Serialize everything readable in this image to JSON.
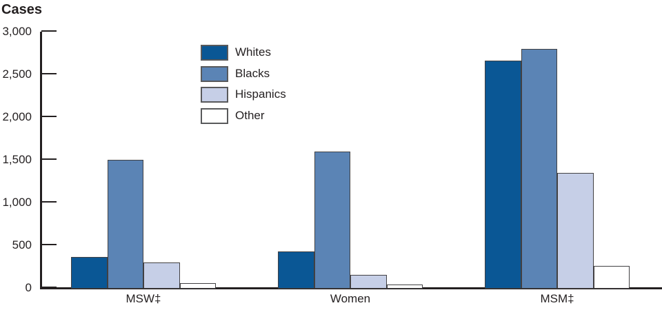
{
  "chart_data": {
    "type": "bar",
    "title": "",
    "ylabel": "Cases",
    "xlabel": "",
    "ylim": [
      0,
      3000
    ],
    "yticks": [
      0,
      500,
      1000,
      1500,
      2000,
      2500,
      3000
    ],
    "ytick_labels": [
      "0",
      "500",
      "1,000",
      "1,500",
      "2,000",
      "2,500",
      "3,000"
    ],
    "categories": [
      "MSW‡",
      "Women",
      "MSM‡"
    ],
    "series": [
      {
        "name": "Whites",
        "color": "#0a5795",
        "values": [
          360,
          425,
          2660
        ]
      },
      {
        "name": "Blacks",
        "color": "#5b84b5",
        "values": [
          1500,
          1600,
          2800
        ]
      },
      {
        "name": "Hispanics",
        "color": "#c6cfe7",
        "values": [
          300,
          150,
          1350
        ]
      },
      {
        "name": "Other",
        "color": "#ffffff",
        "values": [
          55,
          40,
          255
        ]
      }
    ],
    "legend_position": "upper-left-inside",
    "grid": "off",
    "axis_color": "#231f20",
    "bar_border_color": "#414042"
  }
}
